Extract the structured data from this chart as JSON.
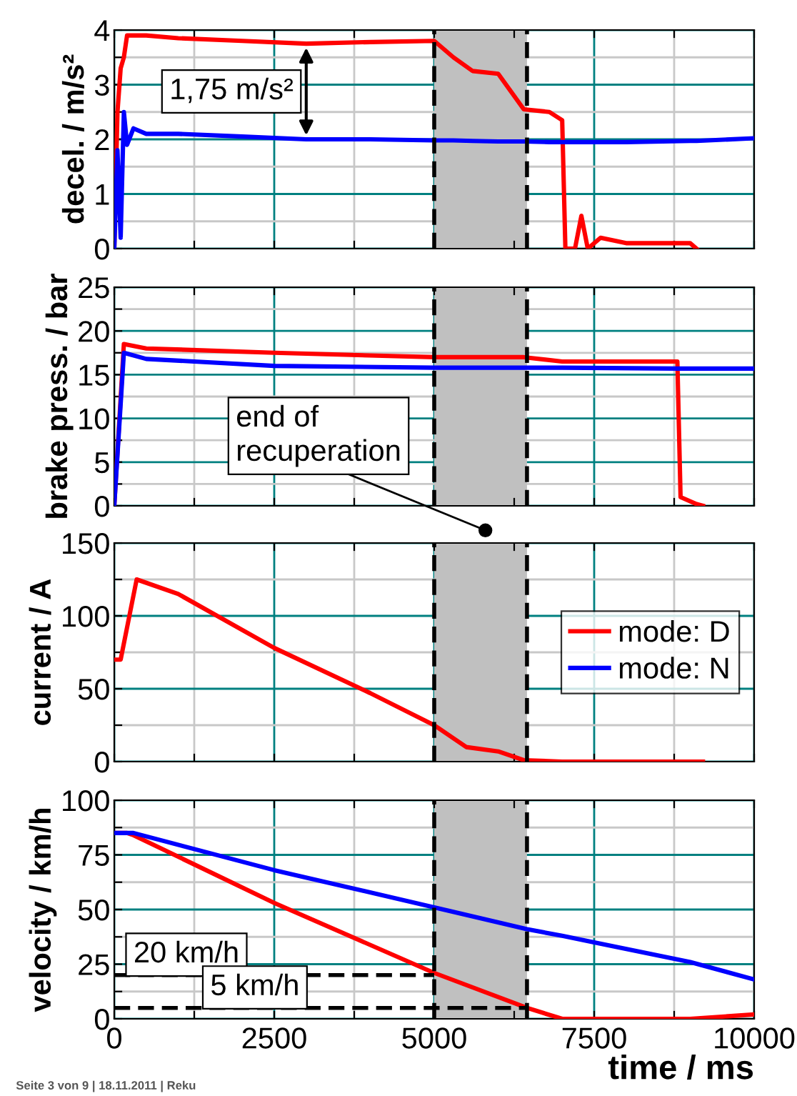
{
  "chart_data": [
    {
      "type": "line",
      "ylabel": "decel. / m/s²",
      "x": [
        0,
        50,
        100,
        150,
        200,
        300,
        500,
        1000,
        2000,
        3000,
        4000,
        5000,
        5300,
        5600,
        6000,
        6400,
        6800,
        7000,
        7050,
        7200,
        7300,
        7400,
        7600,
        8000,
        9000,
        9100,
        10000
      ],
      "series": [
        {
          "color": "#ff0000",
          "values": [
            0,
            2.5,
            3.3,
            3.5,
            3.9,
            3.9,
            3.9,
            3.85,
            3.8,
            3.75,
            3.78,
            3.8,
            3.5,
            3.25,
            3.2,
            2.55,
            2.5,
            2.35,
            0,
            0,
            0.6,
            0,
            0.2,
            0.1,
            0.1,
            0,
            null
          ]
        },
        {
          "color": "#0000ff",
          "values": [
            0,
            1.8,
            0.2,
            2.5,
            1.9,
            2.2,
            2.1,
            2.1,
            2.05,
            2.0,
            2.0,
            1.98,
            1.98,
            1.97,
            1.96,
            1.96,
            1.95,
            1.95,
            1.95,
            1.95,
            1.95,
            1.95,
            1.95,
            1.95,
            1.97,
            1.97,
            2.02
          ]
        }
      ],
      "xlim": [
        0,
        10000
      ],
      "xticks": [
        0,
        {
          "value": 1250,
          "label": null
        },
        2500,
        {
          "value": 3750,
          "label": null
        },
        5000,
        {
          "value": 6250,
          "label": null
        },
        7500,
        {
          "value": 8750,
          "label": null
        },
        10000
      ],
      "ylim": [
        0,
        4
      ],
      "yticks": [
        0,
        {
          "value": 0.5,
          "label": null
        },
        1,
        {
          "value": 1.5,
          "label": null
        },
        2,
        {
          "value": 2.5,
          "label": null
        },
        3,
        {
          "value": 3.5,
          "label": null
        },
        4
      ],
      "tick_labels": "y",
      "grid": true,
      "legend": false,
      "line_style": "solid",
      "bands": [
        {
          "axis": "x",
          "from": 5000,
          "to": 6450,
          "color": "#c0c0c0"
        }
      ],
      "ref_lines": [
        {
          "axis": "x",
          "value": 5000,
          "line_style": "dashed",
          "color": "#000000"
        },
        {
          "axis": "x",
          "value": 6450,
          "line_style": "dashed",
          "color": "#000000"
        }
      ],
      "annotations": [
        {
          "text": "1,75 m/s²",
          "x": 3000,
          "y": 3.75
        }
      ]
    },
    {
      "type": "line",
      "ylabel": "brake press. / bar",
      "x": [
        0,
        150,
        500,
        2500,
        5000,
        6400,
        7000,
        8800,
        8850,
        9100,
        9200,
        10000
      ],
      "series": [
        {
          "color": "#ff0000",
          "values": [
            0,
            18.5,
            18,
            17.5,
            17,
            17,
            16.5,
            16.5,
            1,
            0.2,
            0,
            null
          ]
        },
        {
          "color": "#0000ff",
          "values": [
            0,
            17.5,
            16.8,
            16,
            15.8,
            15.8,
            15.8,
            15.7,
            15.7,
            15.7,
            15.7,
            15.7
          ]
        }
      ],
      "xlim": [
        0,
        10000
      ],
      "xticks": [
        0,
        {
          "value": 1250,
          "label": null
        },
        2500,
        {
          "value": 3750,
          "label": null
        },
        5000,
        {
          "value": 6250,
          "label": null
        },
        7500,
        {
          "value": 8750,
          "label": null
        },
        10000
      ],
      "ylim": [
        0,
        25
      ],
      "yticks": [
        0,
        {
          "value": 2.5,
          "label": null
        },
        5,
        {
          "value": 7.5,
          "label": null
        },
        10,
        {
          "value": 12.5,
          "label": null
        },
        15,
        {
          "value": 17.5,
          "label": null
        },
        20,
        {
          "value": 22.5,
          "label": null
        },
        25
      ],
      "tick_labels": "y",
      "grid": true,
      "legend": false,
      "line_style": "solid",
      "bands": [
        {
          "axis": "x",
          "from": 5000,
          "to": 6450,
          "color": "#c0c0c0"
        }
      ],
      "ref_lines": [
        {
          "axis": "x",
          "value": 5000,
          "line_style": "dashed",
          "color": "#000000"
        },
        {
          "axis": "x",
          "value": 6450,
          "line_style": "dashed",
          "color": "#000000"
        }
      ],
      "annotations": [
        {
          "text": "end of\nrecuperation",
          "x": 5000,
          "y": 0
        }
      ]
    },
    {
      "type": "line",
      "ylabel": "current / A",
      "x": [
        0,
        100,
        350,
        1000,
        2500,
        4000,
        5000,
        5500,
        6000,
        6400,
        7000,
        9200
      ],
      "series": [
        {
          "name": "mode: D",
          "color": "#ff0000",
          "values": [
            70,
            70,
            125,
            115,
            78,
            47,
            25,
            10,
            7,
            1,
            0,
            0
          ]
        },
        {
          "name": "mode: N",
          "color": "#0000ff",
          "values": [
            null,
            null,
            null,
            null,
            null,
            null,
            null,
            null,
            null,
            null,
            null,
            null
          ]
        }
      ],
      "xlim": [
        0,
        10000
      ],
      "xticks": [
        0,
        {
          "value": 1250,
          "label": null
        },
        2500,
        {
          "value": 3750,
          "label": null
        },
        5000,
        {
          "value": 6250,
          "label": null
        },
        7500,
        {
          "value": 8750,
          "label": null
        },
        10000
      ],
      "ylim": [
        0,
        150
      ],
      "yticks": [
        0,
        {
          "value": 25,
          "label": null
        },
        50,
        {
          "value": 75,
          "label": null
        },
        100,
        {
          "value": 125,
          "label": null
        },
        150
      ],
      "tick_labels": "y",
      "grid": true,
      "legend": "right",
      "line_style": "solid",
      "bands": [
        {
          "axis": "x",
          "from": 5000,
          "to": 6450,
          "color": "#c0c0c0"
        }
      ],
      "ref_lines": [
        {
          "axis": "x",
          "value": 5000,
          "line_style": "dashed",
          "color": "#000000"
        },
        {
          "axis": "x",
          "value": 6450,
          "line_style": "dashed",
          "color": "#000000"
        }
      ]
    },
    {
      "type": "line",
      "ylabel": "velocity / km/h",
      "xlabel": "time / ms",
      "x": [
        0,
        200,
        300,
        2500,
        5000,
        6450,
        7000,
        7500,
        9000,
        10000
      ],
      "series": [
        {
          "color": "#ff0000",
          "values": [
            85,
            85,
            84,
            53,
            21,
            5,
            0,
            0,
            0,
            2
          ]
        },
        {
          "color": "#0000ff",
          "values": [
            85,
            85,
            85,
            68,
            51,
            41,
            38,
            35,
            26,
            18
          ]
        },
        {
          "color": "#000000",
          "x": [
            0,
            5000
          ],
          "values": [
            20,
            20
          ],
          "line_style": "dashed"
        },
        {
          "color": "#000000",
          "x": [
            0,
            6450
          ],
          "values": [
            5,
            5
          ],
          "line_style": "dashed"
        }
      ],
      "xlim": [
        0,
        10000
      ],
      "xticks": [
        0,
        {
          "value": 1250,
          "label": null
        },
        2500,
        {
          "value": 3750,
          "label": null
        },
        5000,
        {
          "value": 6250,
          "label": null
        },
        7500,
        {
          "value": 8750,
          "label": null
        },
        10000
      ],
      "ylim": [
        0,
        100
      ],
      "yticks": [
        0,
        {
          "value": 12.5,
          "label": null
        },
        25,
        {
          "value": 37.5,
          "label": null
        },
        50,
        {
          "value": 62.5,
          "label": null
        },
        75,
        {
          "value": 87.5,
          "label": null
        },
        100
      ],
      "grid": true,
      "legend": false,
      "line_style": "solid",
      "bands": [
        {
          "axis": "x",
          "from": 5000,
          "to": 6450,
          "color": "#c0c0c0"
        }
      ],
      "ref_lines": [
        {
          "axis": "x",
          "value": 5000,
          "line_style": "dashed",
          "color": "#000000"
        },
        {
          "axis": "x",
          "value": 6450,
          "line_style": "dashed",
          "color": "#000000"
        }
      ],
      "annotations": [
        {
          "text": "20 km/h",
          "x": 300,
          "y": 20
        },
        {
          "text": "5 km/h",
          "x": 1500,
          "y": 5
        },
        "Seite 3 von 9 | 18.11.2011 | Reku"
      ]
    }
  ]
}
